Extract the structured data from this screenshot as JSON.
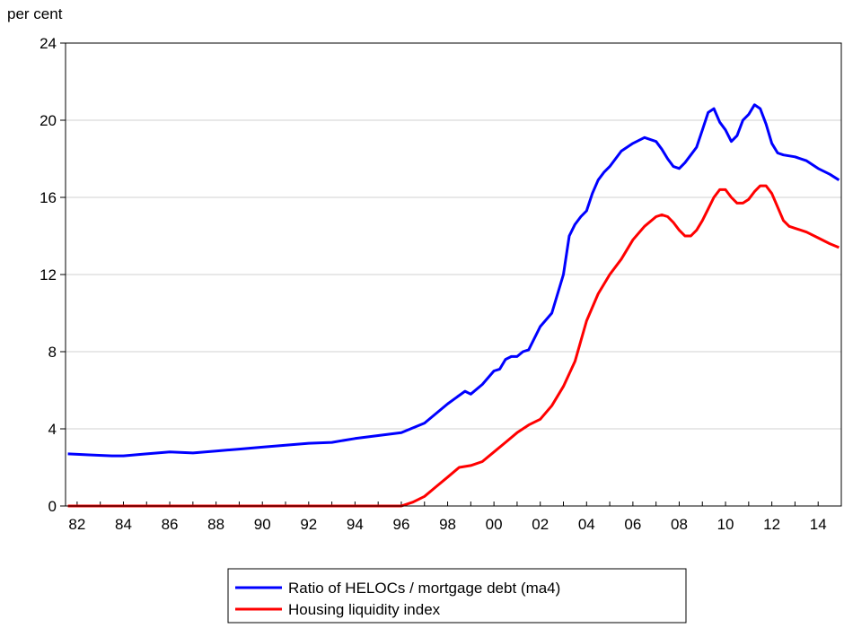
{
  "chart_data": {
    "type": "line",
    "ylabel": "per cent",
    "ylim": [
      0,
      24
    ],
    "yticks": [
      0,
      4,
      8,
      12,
      16,
      20,
      24
    ],
    "xlim": [
      1981.5,
      2015.0
    ],
    "xtick_labels": [
      "82",
      "84",
      "86",
      "88",
      "90",
      "92",
      "94",
      "96",
      "98",
      "00",
      "02",
      "04",
      "06",
      "08",
      "10",
      "12",
      "14"
    ],
    "xtick_years": [
      1982,
      1984,
      1986,
      1988,
      1990,
      1992,
      1994,
      1996,
      1998,
      2000,
      2002,
      2004,
      2006,
      2008,
      2010,
      2012,
      2014
    ],
    "grid": "horizontal",
    "legend_position": "bottom-center",
    "series": [
      {
        "name": "Ratio of HELOCs / mortgage debt (ma4)",
        "color": "#0000ff",
        "x": [
          1981.6,
          1982.5,
          1983.5,
          1984.0,
          1985.0,
          1986.0,
          1987.0,
          1988.0,
          1989.0,
          1990.0,
          1991.0,
          1992.0,
          1993.0,
          1994.0,
          1995.0,
          1996.0,
          1997.0,
          1998.0,
          1998.75,
          1999.0,
          1999.5,
          2000.0,
          2000.25,
          2000.5,
          2000.75,
          2001.0,
          2001.25,
          2001.5,
          2002.0,
          2002.5,
          2003.0,
          2003.25,
          2003.5,
          2003.75,
          2004.0,
          2004.25,
          2004.5,
          2004.75,
          2005.0,
          2005.5,
          2006.0,
          2006.5,
          2007.0,
          2007.25,
          2007.5,
          2007.75,
          2008.0,
          2008.25,
          2008.5,
          2008.75,
          2009.0,
          2009.25,
          2009.5,
          2009.75,
          2010.0,
          2010.25,
          2010.5,
          2010.75,
          2011.0,
          2011.25,
          2011.5,
          2011.75,
          2012.0,
          2012.25,
          2012.5,
          2013.0,
          2013.5,
          2014.0,
          2014.5,
          2014.9
        ],
        "values": [
          2.7,
          2.65,
          2.6,
          2.6,
          2.7,
          2.8,
          2.75,
          2.85,
          2.95,
          3.05,
          3.15,
          3.25,
          3.3,
          3.5,
          3.65,
          3.8,
          4.3,
          5.3,
          5.95,
          5.8,
          6.3,
          7.0,
          7.1,
          7.6,
          7.75,
          7.75,
          8.0,
          8.1,
          9.3,
          10.0,
          12.0,
          14.0,
          14.6,
          15.0,
          15.3,
          16.2,
          16.9,
          17.3,
          17.6,
          18.4,
          18.8,
          19.1,
          18.9,
          18.5,
          18.0,
          17.6,
          17.5,
          17.8,
          18.2,
          18.6,
          19.5,
          20.4,
          20.6,
          19.9,
          19.5,
          18.9,
          19.2,
          20.0,
          20.3,
          20.8,
          20.6,
          19.8,
          18.8,
          18.3,
          18.2,
          18.1,
          17.9,
          17.5,
          17.2,
          16.9
        ]
      },
      {
        "name": "Housing liquidity index",
        "color": "#ff0000",
        "x": [
          1981.6,
          1996.0,
          1996.5,
          1997.0,
          1997.5,
          1998.0,
          1998.5,
          1999.0,
          1999.5,
          2000.0,
          2000.5,
          2001.0,
          2001.5,
          2002.0,
          2002.5,
          2003.0,
          2003.5,
          2004.0,
          2004.5,
          2005.0,
          2005.5,
          2006.0,
          2006.5,
          2007.0,
          2007.25,
          2007.5,
          2007.75,
          2008.0,
          2008.25,
          2008.5,
          2008.75,
          2009.0,
          2009.25,
          2009.5,
          2009.75,
          2010.0,
          2010.25,
          2010.5,
          2010.75,
          2011.0,
          2011.25,
          2011.5,
          2011.75,
          2012.0,
          2012.25,
          2012.5,
          2012.75,
          2013.0,
          2013.5,
          2014.0,
          2014.5,
          2014.9
        ],
        "values": [
          0.0,
          0.0,
          0.2,
          0.5,
          1.0,
          1.5,
          2.0,
          2.1,
          2.3,
          2.8,
          3.3,
          3.8,
          4.2,
          4.5,
          5.2,
          6.2,
          7.5,
          9.6,
          11.0,
          12.0,
          12.8,
          13.8,
          14.5,
          15.0,
          15.1,
          15.0,
          14.7,
          14.3,
          14.0,
          14.0,
          14.3,
          14.8,
          15.4,
          16.0,
          16.4,
          16.4,
          16.0,
          15.7,
          15.7,
          15.9,
          16.3,
          16.6,
          16.6,
          16.2,
          15.5,
          14.8,
          14.5,
          14.4,
          14.2,
          13.9,
          13.6,
          13.4
        ]
      }
    ]
  }
}
